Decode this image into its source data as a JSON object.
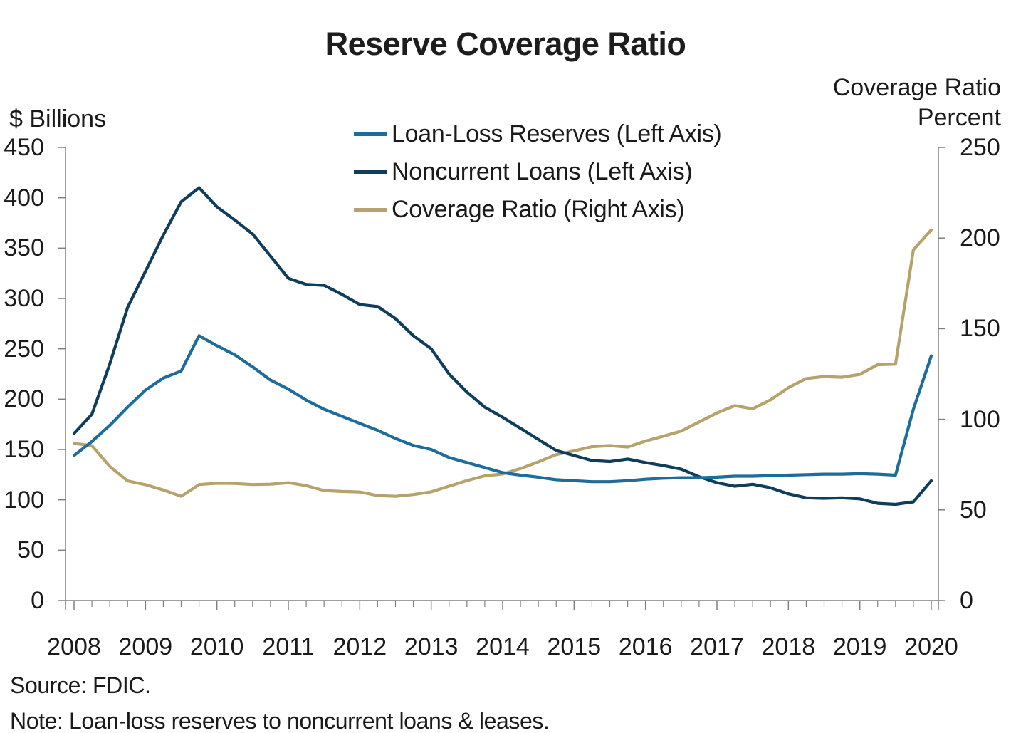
{
  "page": {
    "background": "#ffffff"
  },
  "chart": {
    "title": "Reserve Coverage Ratio",
    "source": "Source: FDIC.",
    "note": "Note: Loan-loss reserves to noncurrent loans & leases.",
    "left_axis": {
      "unit": "$ Billions",
      "min": 0,
      "max": 450,
      "ticks": [
        0,
        50,
        100,
        150,
        200,
        250,
        300,
        350,
        400,
        450
      ]
    },
    "right_axis": {
      "unit_line1": "Coverage Ratio",
      "unit_line2": "Percent",
      "min": 0,
      "max": 250,
      "ticks": [
        0,
        50,
        100,
        150,
        200,
        250
      ]
    },
    "x_axis": {
      "years": [
        2008,
        2009,
        2010,
        2011,
        2012,
        2013,
        2014,
        2015,
        2016,
        2017,
        2018,
        2019,
        2020
      ],
      "minor_ticks_per_year": 4
    },
    "colors": {
      "loan_loss_reserves": "#1C6C9C",
      "noncurrent_loans": "#0F3E5D",
      "coverage_ratio": "#B5A36B",
      "axis": "#808080",
      "text": "#1a1a1a"
    }
  },
  "chart_data": {
    "type": "line",
    "title": "Reserve Coverage Ratio",
    "frequency": "quarterly",
    "start": "2008Q1",
    "end": "2020Q1",
    "x_tick_labels": [
      2008,
      2009,
      2010,
      2011,
      2012,
      2013,
      2014,
      2015,
      2016,
      2017,
      2018,
      2019,
      2020
    ],
    "left_ylim": [
      0,
      450
    ],
    "right_ylim": [
      0,
      250
    ],
    "grid": false,
    "legend_position": "top-center",
    "series": [
      {
        "name": "Loan-Loss Reserves (Left Axis)",
        "axis": "left",
        "color": "#1C6C9C",
        "values": [
          144,
          158,
          174,
          192,
          209,
          221,
          228,
          263,
          253,
          244,
          232,
          219,
          210,
          199,
          190,
          183,
          176,
          169,
          161,
          154,
          150,
          142,
          137,
          132,
          127,
          124.5,
          122.5,
          120,
          119,
          118,
          118,
          119,
          120.5,
          121.5,
          122,
          122,
          122.5,
          123.5,
          123.5,
          124,
          124.5,
          125,
          125.5,
          125.5,
          126,
          125.5,
          124.5,
          190,
          243
        ]
      },
      {
        "name": "Noncurrent Loans (Left Axis)",
        "axis": "left",
        "color": "#0F3E5D",
        "values": [
          166,
          185,
          235,
          291,
          327,
          363,
          396,
          410,
          391,
          378,
          364,
          342,
          320,
          314,
          313,
          304,
          294,
          292,
          280,
          263,
          250,
          225,
          207,
          192,
          182,
          171,
          160,
          149,
          144,
          139,
          138,
          140.5,
          137,
          134,
          130.5,
          123,
          117,
          113.5,
          115.5,
          112,
          106,
          102,
          101.5,
          102,
          101,
          96.5,
          95.5,
          98,
          119
        ]
      },
      {
        "name": "Coverage Ratio (Right Axis)",
        "axis": "right",
        "color": "#B5A36B",
        "values": [
          86.7,
          85.4,
          74,
          66,
          63.9,
          61,
          57.5,
          64,
          64.7,
          64.6,
          64,
          64.2,
          65,
          63.4,
          60.7,
          60.2,
          59.9,
          57.9,
          57.5,
          58.5,
          60,
          63.1,
          66.2,
          68.8,
          69.8,
          72.8,
          76.5,
          80.5,
          82.6,
          84.9,
          85.5,
          84.7,
          88,
          90.7,
          93.5,
          98.5,
          103.5,
          107.5,
          105.8,
          110.7,
          117.5,
          122.5,
          123.6,
          123.2,
          124.8,
          130.1,
          130.4,
          193.5,
          204.5
        ]
      }
    ]
  }
}
